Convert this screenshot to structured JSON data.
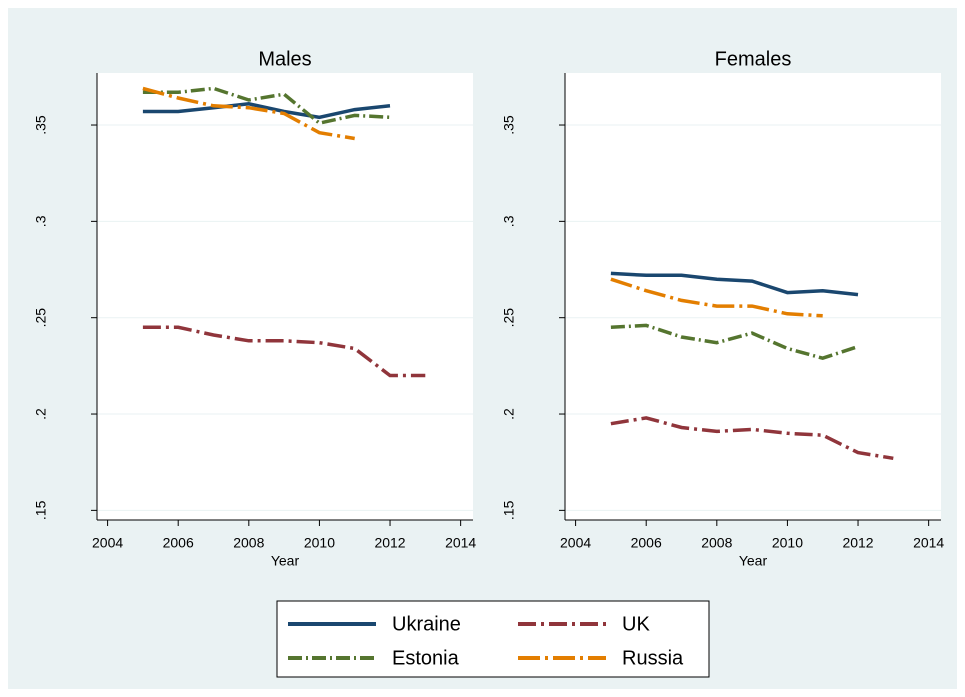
{
  "chart_data": [
    {
      "type": "line",
      "title": "Males",
      "xlabel": "Year",
      "x": [
        2005,
        2006,
        2007,
        2008,
        2009,
        2010,
        2011,
        2012,
        2013
      ],
      "series": [
        {
          "name": "Ukraine",
          "color": "#1a476f",
          "dash": "solid",
          "values": [
            0.357,
            0.357,
            0.359,
            0.361,
            0.357,
            0.354,
            0.358,
            0.36,
            null
          ]
        },
        {
          "name": "UK",
          "color": "#90353b",
          "dash": "longdashdot",
          "values": [
            0.245,
            0.245,
            0.241,
            0.238,
            0.238,
            0.237,
            0.234,
            0.22,
            0.22
          ]
        },
        {
          "name": "Estonia",
          "color": "#55752f",
          "dash": "dashdot",
          "values": [
            0.367,
            0.367,
            0.369,
            0.363,
            0.366,
            0.351,
            0.355,
            0.354,
            null
          ]
        },
        {
          "name": "Russia",
          "color": "#e37e00",
          "dash": "longdash",
          "values": [
            0.369,
            0.364,
            0.36,
            0.359,
            0.356,
            0.346,
            0.343,
            null,
            null
          ]
        }
      ],
      "xlim": [
        2003.7,
        2014.35
      ],
      "xticks": [
        2004,
        2006,
        2008,
        2010,
        2012,
        2014
      ],
      "ylim": [
        0.145,
        0.377
      ],
      "yticks": [
        {
          "value": 0.15,
          "label": ".15"
        },
        {
          "value": 0.2,
          "label": ".2"
        },
        {
          "value": 0.25,
          "label": ".25"
        },
        {
          "value": 0.3,
          "label": ".3"
        },
        {
          "value": 0.35,
          "label": ".35"
        }
      ],
      "grid": true
    },
    {
      "type": "line",
      "title": "Females",
      "xlabel": "Year",
      "x": [
        2005,
        2006,
        2007,
        2008,
        2009,
        2010,
        2011,
        2012,
        2013
      ],
      "series": [
        {
          "name": "Ukraine",
          "color": "#1a476f",
          "dash": "solid",
          "values": [
            0.273,
            0.272,
            0.272,
            0.27,
            0.269,
            0.263,
            0.264,
            0.262,
            null
          ]
        },
        {
          "name": "UK",
          "color": "#90353b",
          "dash": "longdashdot",
          "values": [
            0.195,
            0.198,
            0.193,
            0.191,
            0.192,
            0.19,
            0.189,
            0.18,
            0.177
          ]
        },
        {
          "name": "Estonia",
          "color": "#55752f",
          "dash": "dashdot",
          "values": [
            0.245,
            0.246,
            0.24,
            0.237,
            0.242,
            0.234,
            0.229,
            0.235,
            null
          ]
        },
        {
          "name": "Russia",
          "color": "#e37e00",
          "dash": "longdash",
          "values": [
            0.27,
            0.264,
            0.259,
            0.256,
            0.256,
            0.252,
            0.251,
            null,
            null
          ]
        }
      ],
      "xlim": [
        2003.7,
        2014.35
      ],
      "xticks": [
        2004,
        2006,
        2008,
        2010,
        2012,
        2014
      ],
      "ylim": [
        0.145,
        0.377
      ],
      "yticks": [
        {
          "value": 0.15,
          "label": ".15"
        },
        {
          "value": 0.2,
          "label": ".2"
        },
        {
          "value": 0.25,
          "label": ".25"
        },
        {
          "value": 0.3,
          "label": ".3"
        },
        {
          "value": 0.35,
          "label": ".35"
        }
      ],
      "grid": true
    }
  ]
}
